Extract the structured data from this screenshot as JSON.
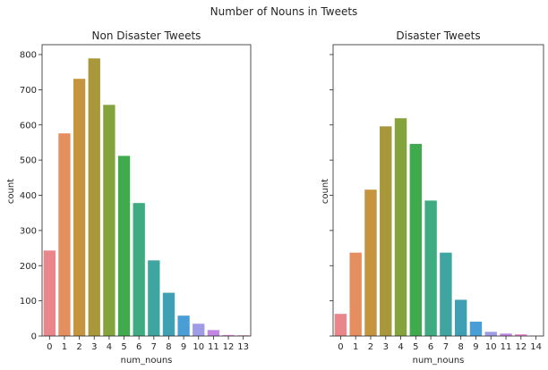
{
  "suptitle": "Number of Nouns in Tweets",
  "chart_data": [
    {
      "type": "bar",
      "title": "Non Disaster Tweets",
      "xlabel": "num_nouns",
      "ylabel": "count",
      "categories": [
        "0",
        "1",
        "2",
        "3",
        "4",
        "5",
        "6",
        "7",
        "8",
        "9",
        "10",
        "11",
        "12",
        "13"
      ],
      "values": [
        243,
        576,
        731,
        789,
        657,
        512,
        378,
        215,
        123,
        58,
        35,
        17,
        3,
        2
      ],
      "ylim": [
        0,
        828
      ],
      "yticks": [
        0,
        100,
        200,
        300,
        400,
        500,
        600,
        700,
        800
      ],
      "colors": [
        "#e8868c",
        "#e58f60",
        "#c4953e",
        "#a8973b",
        "#84a33c",
        "#3fab4d",
        "#3eab80",
        "#3ea5a0",
        "#3fa0b4",
        "#4a9ed6",
        "#9f9ce6",
        "#c286e3",
        "#e38bd0",
        "#e88ab0"
      ],
      "grid": false,
      "legend": "none"
    },
    {
      "type": "bar",
      "title": "Disaster Tweets",
      "xlabel": "num_nouns",
      "ylabel": "count",
      "categories": [
        "0",
        "1",
        "2",
        "3",
        "4",
        "5",
        "6",
        "7",
        "8",
        "9",
        "10",
        "11",
        "12",
        "14"
      ],
      "values": [
        63,
        237,
        416,
        596,
        619,
        546,
        385,
        237,
        103,
        41,
        12,
        7,
        5,
        1
      ],
      "ylim": [
        0,
        828
      ],
      "yticks": [
        0,
        100,
        200,
        300,
        400,
        500,
        600,
        700,
        800
      ],
      "show_y_ticklabels": false,
      "colors": [
        "#e8868c",
        "#e58f60",
        "#c4953e",
        "#a8973b",
        "#84a33c",
        "#3fab4d",
        "#3eab80",
        "#3ea5a0",
        "#3fa0b4",
        "#4a9ed6",
        "#9f9ce6",
        "#c286e3",
        "#e38bd0",
        "#e88ab0"
      ],
      "grid": false,
      "legend": "none"
    }
  ]
}
